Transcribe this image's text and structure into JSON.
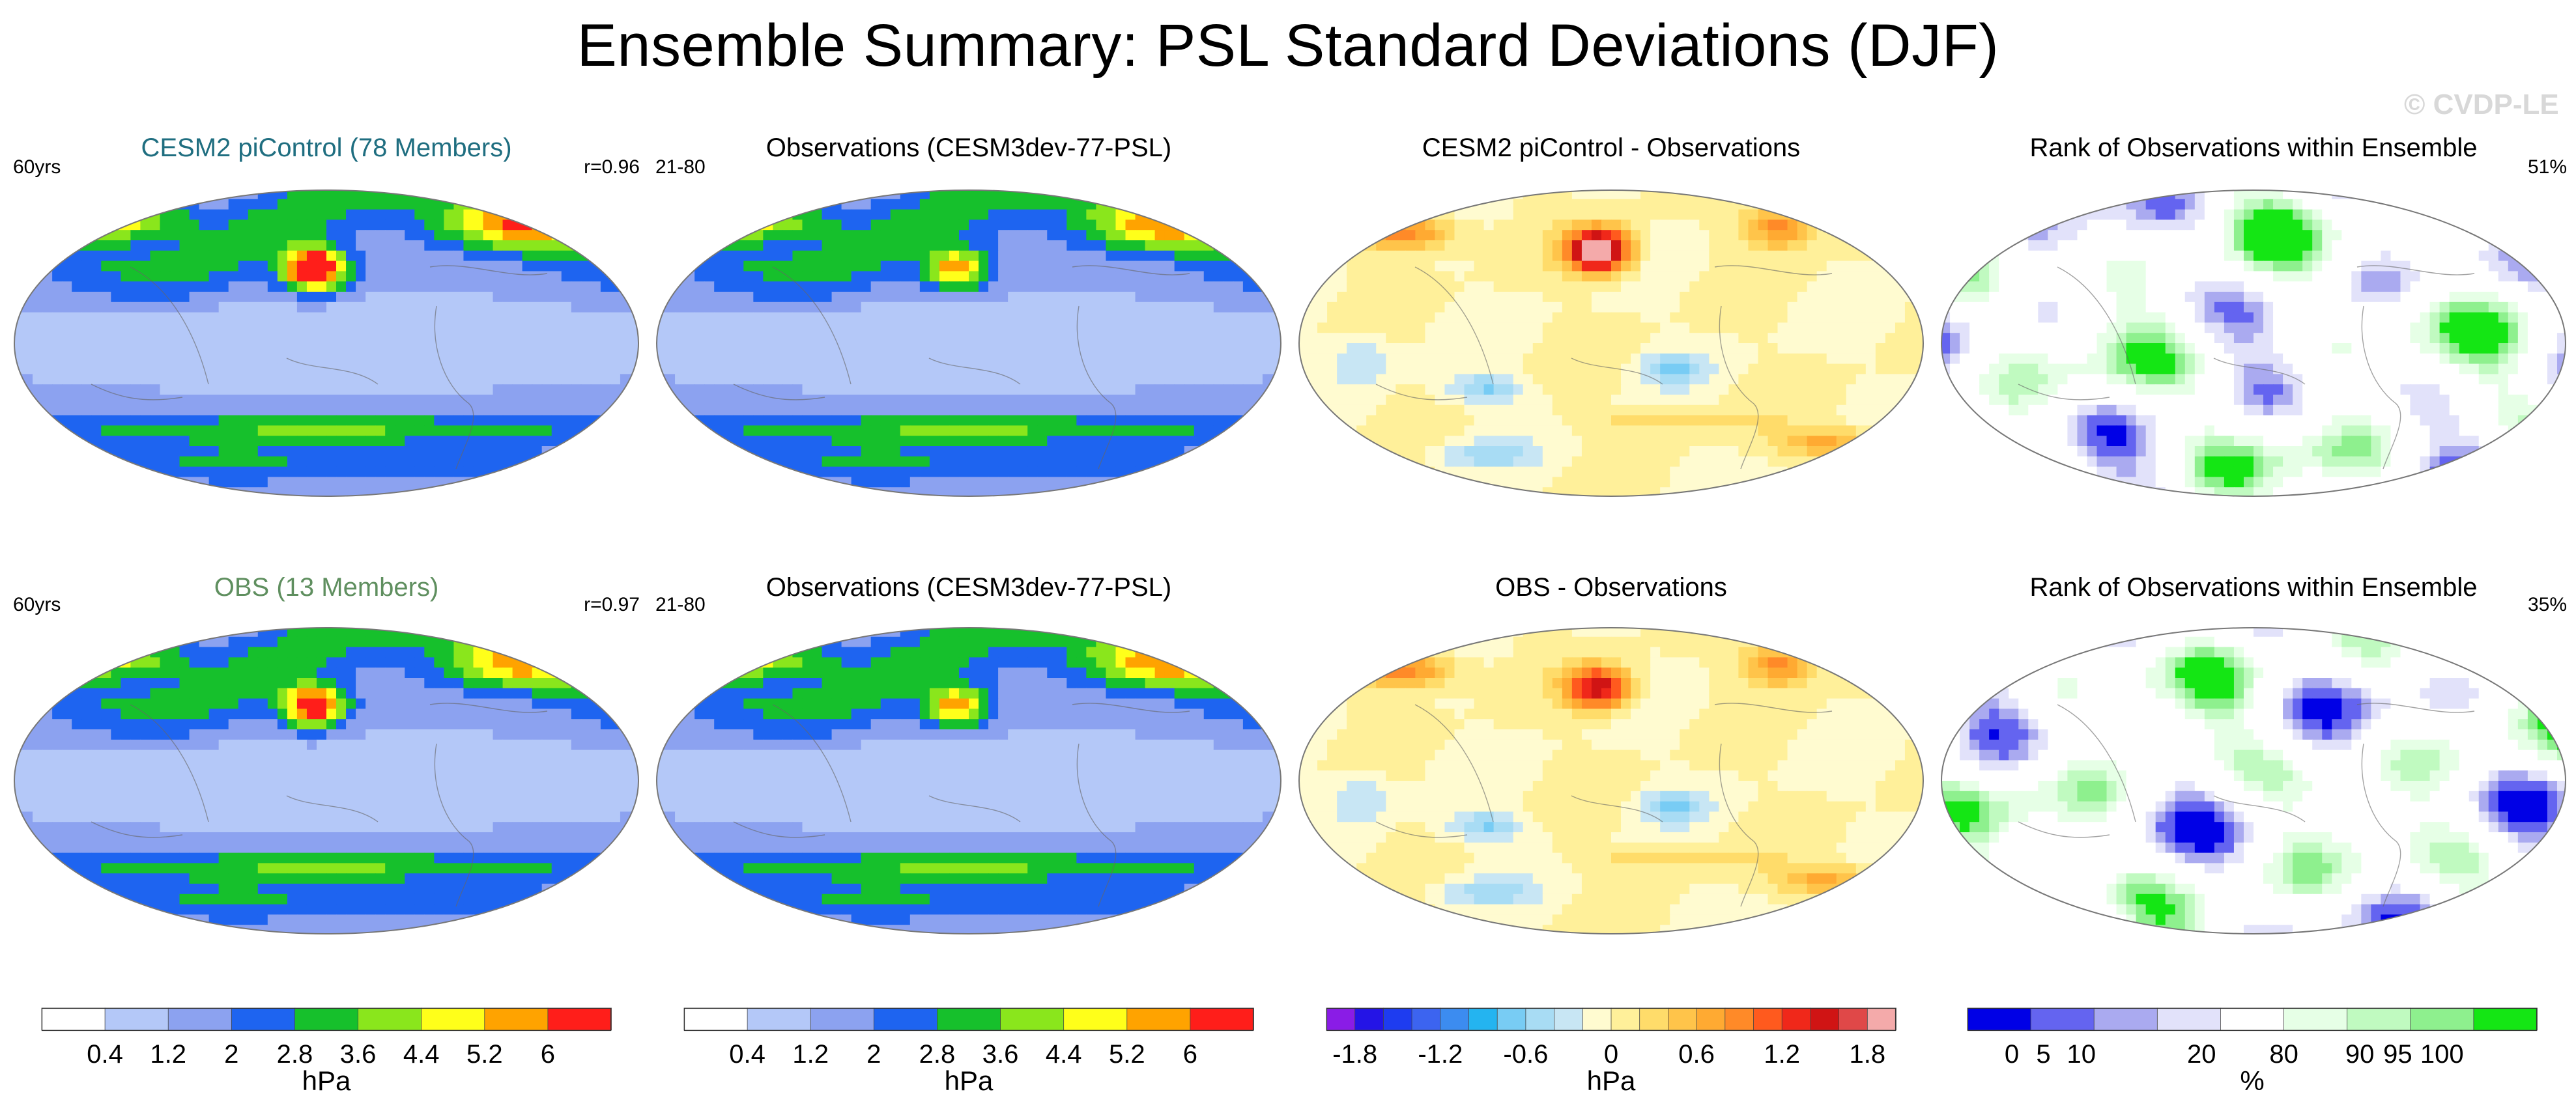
{
  "title": "Ensemble Summary: PSL Standard Deviations (DJF)",
  "watermark": "© CVDP-LE",
  "chart_data": [
    {
      "type": "heatmap",
      "title": "CESM2 piControl (78 Members)",
      "title_color": "#1f6e80",
      "left_label": "60yrs",
      "right_label": "r=0.96",
      "field": "std",
      "features": {
        "nh_center": 4.9,
        "pac_center": 6.8
      }
    },
    {
      "type": "heatmap",
      "title": "Observations (CESM3dev-77-PSL)",
      "title_color": "#000000",
      "left_label": "21-80",
      "right_label": "",
      "field": "std",
      "features": {
        "nh_center": 4.6,
        "pac_center": 4.2
      }
    },
    {
      "type": "heatmap",
      "title": "CESM2 piControl - Observations",
      "title_color": "#000000",
      "left_label": "",
      "right_label": "",
      "field": "diff",
      "features": {
        "pac_center": 2.3
      }
    },
    {
      "type": "heatmap",
      "title": "Rank of Observations within Ensemble",
      "title_color": "#000000",
      "left_label": "",
      "right_label": "51%",
      "field": "rank",
      "features": {
        "seed": 1
      }
    },
    {
      "type": "heatmap",
      "title": "OBS (13 Members)",
      "title_color": "#5f8f5f",
      "left_label": "60yrs",
      "right_label": "r=0.97",
      "field": "std",
      "features": {
        "nh_center": 4.5,
        "pac_center": 5.6
      }
    },
    {
      "type": "heatmap",
      "title": "Observations (CESM3dev-77-PSL)",
      "title_color": "#000000",
      "left_label": "21-80",
      "right_label": "",
      "field": "std",
      "features": {
        "nh_center": 4.6,
        "pac_center": 4.2
      }
    },
    {
      "type": "heatmap",
      "title": "OBS - Observations",
      "title_color": "#000000",
      "left_label": "",
      "right_label": "",
      "field": "diff",
      "features": {
        "pac_center": 1.6
      }
    },
    {
      "type": "heatmap",
      "title": "Rank of Observations within Ensemble",
      "title_color": "#000000",
      "left_label": "",
      "right_label": "35%",
      "field": "rank",
      "features": {
        "seed": 2
      }
    }
  ],
  "colorbars": [
    {
      "name": "std-colorbar-1",
      "unit": "hPa",
      "colors": [
        "#ffffff",
        "#b4c8f8",
        "#8ca2f0",
        "#1e64f0",
        "#16c02c",
        "#8ae61c",
        "#ffff1a",
        "#ffa300",
        "#ff1e1a"
      ],
      "tick_labels": [
        "0.4",
        "1.2",
        "2",
        "2.8",
        "3.6",
        "4.4",
        "5.2",
        "6"
      ],
      "tick_positions": [
        1,
        2,
        3,
        4,
        5,
        6,
        7,
        8
      ]
    },
    {
      "name": "std-colorbar-2",
      "unit": "hPa",
      "colors": [
        "#ffffff",
        "#b4c8f8",
        "#8ca2f0",
        "#1e64f0",
        "#16c02c",
        "#8ae61c",
        "#ffff1a",
        "#ffa300",
        "#ff1e1a"
      ],
      "tick_labels": [
        "0.4",
        "1.2",
        "2",
        "2.8",
        "3.6",
        "4.4",
        "5.2",
        "6"
      ],
      "tick_positions": [
        1,
        2,
        3,
        4,
        5,
        6,
        7,
        8
      ]
    },
    {
      "name": "diff-colorbar",
      "unit": "hPa",
      "colors": [
        "#8a1ce6",
        "#2414e6",
        "#1e3cf0",
        "#3c64f0",
        "#3c8cf0",
        "#24b4f0",
        "#78ccf4",
        "#a8dcf4",
        "#c8e6f4",
        "#fffbd0",
        "#fff09a",
        "#ffdc6a",
        "#ffc44a",
        "#ffaa32",
        "#ff8a28",
        "#ff5a1e",
        "#f0281a",
        "#d01414",
        "#e04848",
        "#f4aaaa"
      ],
      "tick_labels": [
        "-1.8",
        "-1.2",
        "-0.6",
        "0",
        "0.6",
        "1.2",
        "1.8"
      ],
      "tick_positions": [
        1,
        4,
        7,
        10,
        13,
        16,
        19
      ]
    },
    {
      "name": "rank-colorbar",
      "unit": "%",
      "colors": [
        "#0000e6",
        "#6464f0",
        "#aaaaf0",
        "#e2e2fa",
        "#ffffff",
        "#e6ffe6",
        "#c0fac0",
        "#8ef08e",
        "#14e614"
      ],
      "tick_labels": [
        "0",
        "5",
        "10",
        "20",
        "80",
        "90",
        "95",
        "100"
      ],
      "tick_positions": [
        0.7,
        1.2,
        1.8,
        3.7,
        5,
        6.2,
        6.8,
        7.5
      ]
    }
  ]
}
